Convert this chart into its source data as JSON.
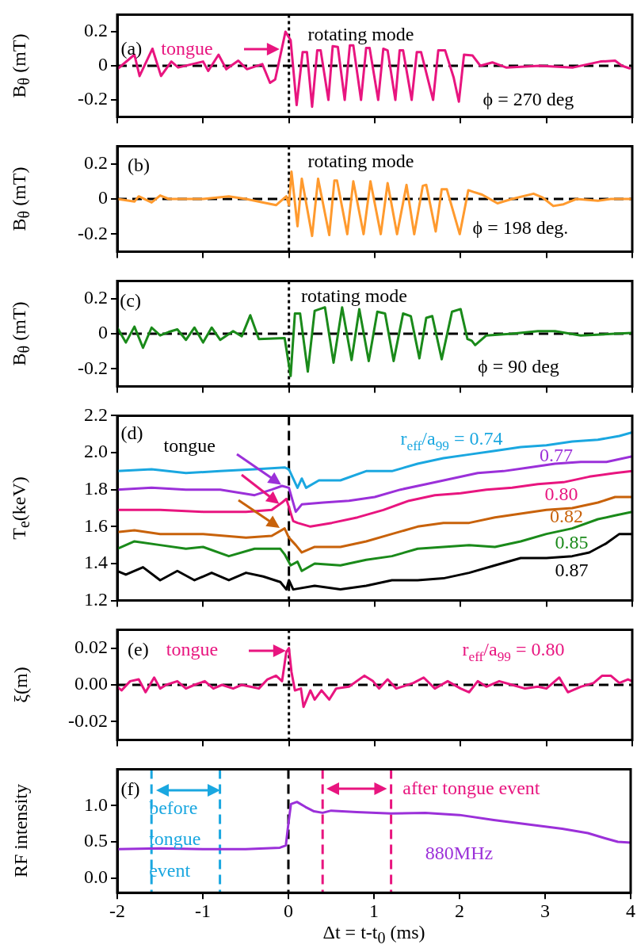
{
  "chart_data": [
    {
      "type": "line",
      "ylabel": "B$_{θ}$ (mT)",
      "xlim": [
        -2,
        4
      ],
      "xticks": [
        -2,
        -1,
        0,
        1,
        2,
        3,
        4
      ],
      "ylim": [
        -0.3,
        0.3
      ],
      "yticks": [
        -0.2,
        0,
        0.2
      ],
      "tick_labels": "y",
      "annotations": [
        "(a)",
        "tongue",
        "rotating mode",
        "ϕ = 270 deg"
      ],
      "ref_lines": [
        {
          "axis": "y",
          "value": 0,
          "line_style": "dashed"
        },
        {
          "axis": "x",
          "value": 0,
          "line_style": "dotted"
        }
      ],
      "series": [
        {
          "color": "#e8157f",
          "x": [
            -2,
            -1.8,
            -1.74,
            -1.59,
            -1.49,
            -1.37,
            -1.29,
            -1.0,
            -0.94,
            -0.82,
            -0.73,
            -0.59,
            -0.49,
            -0.31,
            -0.22,
            -0.16,
            -0.04,
            0.02,
            0.09,
            0.16,
            0.21,
            0.27,
            0.33,
            0.37,
            0.46,
            0.51,
            0.57,
            0.65,
            0.71,
            0.75,
            0.84,
            0.9,
            0.94,
            1.04,
            1.1,
            1.15,
            1.24,
            1.29,
            1.33,
            1.43,
            1.49,
            1.54,
            1.68,
            1.74,
            1.82,
            1.92,
            1.98,
            2.04,
            2.14,
            2.23,
            2.37,
            2.53,
            2.92,
            3.31,
            3.63,
            3.8,
            3.88,
            3.97
          ],
          "values": [
            -0.02,
            0.065,
            -0.06,
            0.1,
            -0.06,
            0.025,
            -0.01,
            0.025,
            -0.03,
            0.065,
            -0.02,
            0.03,
            -0.02,
            0.01,
            -0.1,
            -0.08,
            0.2,
            0.15,
            -0.23,
            0.08,
            0.08,
            -0.24,
            0.09,
            0.09,
            -0.2,
            0.115,
            0.11,
            -0.2,
            0.12,
            0.12,
            -0.2,
            0.105,
            0.105,
            -0.2,
            0.1,
            0.09,
            -0.2,
            0.09,
            0.09,
            -0.2,
            0.08,
            0.08,
            -0.2,
            0.09,
            0.09,
            -0.07,
            -0.21,
            0.065,
            0.06,
            0.0,
            0.02,
            -0.01,
            0.0,
            -0.01,
            0.025,
            0.03,
            0.0,
            -0.015
          ]
        }
      ]
    },
    {
      "type": "line",
      "ylabel": "B$_{θ}$ (mT)",
      "xlim": [
        -2,
        4
      ],
      "xticks": [
        -2,
        -1,
        0,
        1,
        2,
        3,
        4
      ],
      "ylim": [
        -0.3,
        0.3
      ],
      "yticks": [
        -0.2,
        0,
        0.2
      ],
      "tick_labels": "y",
      "annotations": [
        "(b)",
        "rotating mode",
        "ϕ = 198 deg."
      ],
      "ref_lines": [
        {
          "axis": "y",
          "value": 0,
          "line_style": "dashed"
        },
        {
          "axis": "x",
          "value": 0,
          "line_style": "dotted"
        }
      ],
      "series": [
        {
          "color": "#ff9a2e",
          "x": [
            -2,
            -1.8,
            -1.75,
            -1.6,
            -1.5,
            -1.4,
            -1.0,
            -0.7,
            -0.5,
            -0.3,
            -0.15,
            -0.03,
            0.0,
            0.03,
            0.1,
            0.15,
            0.27,
            0.34,
            0.47,
            0.53,
            0.56,
            0.68,
            0.75,
            0.87,
            0.95,
            1.07,
            1.15,
            1.26,
            1.37,
            1.46,
            1.56,
            1.6,
            1.71,
            1.78,
            1.84,
            1.99,
            2.09,
            2.15,
            2.25,
            2.43,
            2.6,
            2.85,
            2.95,
            3.08,
            3.2,
            3.35,
            3.6,
            3.75,
            4.0
          ],
          "values": [
            0.0,
            -0.015,
            0.015,
            -0.02,
            0.02,
            0.0,
            0.0,
            0.015,
            0.0,
            -0.02,
            -0.035,
            0.015,
            -0.035,
            0.155,
            -0.155,
            0.115,
            -0.21,
            0.115,
            -0.205,
            0.105,
            0.105,
            -0.2,
            0.1,
            -0.2,
            0.1,
            -0.2,
            0.09,
            -0.2,
            0.08,
            -0.2,
            0.075,
            0.08,
            -0.185,
            0.055,
            0.055,
            -0.2,
            0.05,
            0.04,
            0.025,
            -0.025,
            0.0,
            0.03,
            0.01,
            -0.04,
            -0.03,
            0.0,
            -0.01,
            0.0,
            0.0
          ]
        }
      ]
    },
    {
      "type": "line",
      "ylabel": "B$_{θ}$ (mT)",
      "xlim": [
        -2,
        4
      ],
      "xticks": [
        -2,
        -1,
        0,
        1,
        2,
        3,
        4
      ],
      "ylim": [
        -0.3,
        0.3
      ],
      "yticks": [
        -0.2,
        0,
        0.2
      ],
      "tick_labels": "y",
      "annotations": [
        "(c)",
        "rotating mode",
        "ϕ = 90 deg"
      ],
      "ref_lines": [
        {
          "axis": "y",
          "value": 0,
          "line_style": "dashed"
        },
        {
          "axis": "x",
          "value": 0,
          "line_style": "dotted"
        }
      ],
      "series": [
        {
          "color": "#1a8a1a",
          "x": [
            -2,
            -1.9,
            -1.8,
            -1.7,
            -1.6,
            -1.5,
            -1.4,
            -1.3,
            -1.2,
            -1.1,
            -1.0,
            -0.9,
            -0.8,
            -0.65,
            -0.55,
            -0.45,
            -0.35,
            -0.05,
            0.02,
            0.07,
            0.13,
            0.22,
            0.3,
            0.42,
            0.52,
            0.62,
            0.73,
            0.82,
            0.93,
            1.03,
            1.12,
            1.22,
            1.33,
            1.42,
            1.52,
            1.6,
            1.67,
            1.78,
            1.9,
            2.0,
            2.08,
            2.13,
            2.17,
            2.3,
            2.6,
            2.9,
            3.1,
            3.4,
            3.8,
            4.0
          ],
          "values": [
            0.035,
            -0.05,
            0.04,
            -0.08,
            0.035,
            -0.01,
            0.01,
            0.025,
            -0.035,
            0.035,
            -0.05,
            0.035,
            -0.035,
            0.015,
            -0.015,
            0.105,
            -0.03,
            -0.025,
            -0.24,
            0.115,
            0.115,
            -0.215,
            0.13,
            0.15,
            -0.165,
            0.15,
            -0.15,
            0.14,
            -0.155,
            0.125,
            0.115,
            -0.155,
            0.115,
            0.1,
            -0.14,
            0.09,
            0.1,
            -0.145,
            0.125,
            0.14,
            -0.03,
            -0.04,
            -0.065,
            -0.01,
            0.0,
            0.015,
            0.015,
            -0.01,
            0.0,
            0.005
          ]
        }
      ]
    },
    {
      "type": "line",
      "ylabel": "T$_{e}$(keV)",
      "xlim": [
        -2,
        4
      ],
      "xticks": [
        -2,
        -1,
        0,
        1,
        2,
        3,
        4
      ],
      "ylim": [
        1.2,
        2.2
      ],
      "yticks": [
        1.2,
        1.4,
        1.6,
        1.8,
        {
          "value": 2,
          "label": "2.0"
        },
        2.2
      ],
      "tick_labels": "y",
      "annotations": [
        "(d)",
        "tongue"
      ],
      "ref_lines": [
        {
          "axis": "x",
          "value": 0,
          "line_style": "dashed"
        }
      ],
      "series": [
        {
          "name": "r$_{eff}$/a$_{99}$ = 0.74",
          "color": "#1aa7e0",
          "x": [
            -2,
            -1.6,
            -1.2,
            -0.8,
            -0.4,
            -0.05,
            0.0,
            0.1,
            0.15,
            0.2,
            0.35,
            0.6,
            0.9,
            1.2,
            1.5,
            1.8,
            2.1,
            2.4,
            2.7,
            3.0,
            3.3,
            3.6,
            3.85,
            4.0
          ],
          "values": [
            1.9,
            1.91,
            1.89,
            1.9,
            1.91,
            1.92,
            1.91,
            1.81,
            1.86,
            1.81,
            1.85,
            1.85,
            1.9,
            1.9,
            1.94,
            1.97,
            1.99,
            2.01,
            2.03,
            2.04,
            2.06,
            2.07,
            2.09,
            2.11
          ]
        },
        {
          "name": "0.77",
          "color": "#9b30d9",
          "x": [
            -2,
            -1.6,
            -1.2,
            -0.8,
            -0.4,
            -0.2,
            -0.08,
            0.0,
            0.08,
            0.15,
            0.4,
            0.7,
            1.0,
            1.3,
            1.6,
            1.9,
            2.2,
            2.5,
            2.8,
            3.1,
            3.4,
            3.7,
            4.0
          ],
          "values": [
            1.8,
            1.81,
            1.8,
            1.8,
            1.77,
            1.8,
            1.82,
            1.81,
            1.68,
            1.72,
            1.73,
            1.74,
            1.76,
            1.8,
            1.83,
            1.86,
            1.89,
            1.9,
            1.92,
            1.94,
            1.95,
            1.95,
            1.98
          ]
        },
        {
          "name": "0.80",
          "color": "#e8157f",
          "x": [
            -2,
            -1.5,
            -1.0,
            -0.5,
            -0.2,
            -0.08,
            -0.03,
            0.05,
            0.1,
            0.25,
            0.5,
            0.8,
            1.1,
            1.4,
            1.7,
            2.0,
            2.3,
            2.6,
            2.9,
            3.2,
            3.5,
            3.8,
            4.0
          ],
          "values": [
            1.69,
            1.69,
            1.68,
            1.68,
            1.69,
            1.73,
            1.75,
            1.63,
            1.62,
            1.6,
            1.62,
            1.65,
            1.69,
            1.74,
            1.77,
            1.78,
            1.8,
            1.81,
            1.83,
            1.84,
            1.87,
            1.89,
            1.9
          ]
        },
        {
          "name": "0.82",
          "color": "#c8620a",
          "x": [
            -2,
            -1.8,
            -1.5,
            -1.0,
            -0.5,
            -0.2,
            -0.05,
            0.0,
            0.08,
            0.15,
            0.3,
            0.6,
            0.9,
            1.2,
            1.5,
            1.8,
            2.1,
            2.4,
            2.7,
            3.0,
            3.3,
            3.6,
            3.8,
            4.0
          ],
          "values": [
            1.57,
            1.58,
            1.56,
            1.56,
            1.54,
            1.55,
            1.59,
            1.54,
            1.5,
            1.46,
            1.49,
            1.49,
            1.52,
            1.56,
            1.6,
            1.62,
            1.62,
            1.65,
            1.67,
            1.69,
            1.7,
            1.73,
            1.76,
            1.76
          ]
        },
        {
          "name": "0.85",
          "color": "#1a8a1a",
          "x": [
            -2,
            -1.8,
            -1.5,
            -1.2,
            -1.0,
            -0.7,
            -0.4,
            -0.1,
            -0.05,
            0.02,
            0.1,
            0.15,
            0.3,
            0.6,
            0.9,
            1.2,
            1.5,
            1.8,
            2.1,
            2.4,
            2.7,
            3.0,
            3.3,
            3.6,
            3.8,
            4.0
          ],
          "values": [
            1.48,
            1.52,
            1.5,
            1.48,
            1.49,
            1.44,
            1.48,
            1.48,
            1.45,
            1.39,
            1.41,
            1.36,
            1.4,
            1.39,
            1.42,
            1.44,
            1.48,
            1.49,
            1.5,
            1.49,
            1.52,
            1.56,
            1.59,
            1.64,
            1.66,
            1.68
          ]
        },
        {
          "name": "0.87",
          "color": "#000000",
          "x": [
            -2,
            -1.9,
            -1.7,
            -1.5,
            -1.3,
            -1.1,
            -0.9,
            -0.7,
            -0.5,
            -0.3,
            -0.1,
            -0.03,
            0.0,
            0.05,
            0.3,
            0.6,
            0.9,
            1.2,
            1.5,
            1.8,
            2.1,
            2.4,
            2.7,
            3.0,
            3.3,
            3.5,
            3.7,
            3.85,
            4.0
          ],
          "values": [
            1.36,
            1.34,
            1.38,
            1.31,
            1.36,
            1.31,
            1.35,
            1.31,
            1.35,
            1.33,
            1.3,
            1.26,
            1.31,
            1.26,
            1.28,
            1.26,
            1.28,
            1.31,
            1.31,
            1.32,
            1.35,
            1.39,
            1.43,
            1.43,
            1.44,
            1.46,
            1.51,
            1.56,
            1.56
          ]
        }
      ]
    },
    {
      "type": "line",
      "ylabel": "ξ(m)",
      "xlim": [
        -2,
        4
      ],
      "xticks": [
        -2,
        -1,
        0,
        1,
        2,
        3,
        4
      ],
      "ylim": [
        -0.03,
        0.03
      ],
      "yticks": [
        -0.02,
        {
          "value": 0,
          "label": "0.00"
        },
        0.02
      ],
      "tick_labels": "y",
      "annotations": [
        "(e)",
        "tongue"
      ],
      "ref_lines": [
        {
          "axis": "y",
          "value": 0,
          "line_style": "dashed"
        },
        {
          "axis": "x",
          "value": 0,
          "line_style": "dotted"
        }
      ],
      "series": [
        {
          "name": "r$_{eff}$/a$_{99}$ = 0.80",
          "color": "#e8157f",
          "x": [
            -2,
            -1.95,
            -1.85,
            -1.75,
            -1.67,
            -1.57,
            -1.5,
            -1.43,
            -1.3,
            -1.2,
            -1.1,
            -0.98,
            -0.88,
            -0.78,
            -0.65,
            -0.55,
            -0.45,
            -0.35,
            -0.25,
            -0.15,
            -0.08,
            -0.03,
            0.0,
            0.03,
            0.07,
            0.14,
            0.17,
            0.25,
            0.3,
            0.38,
            0.47,
            0.55,
            0.7,
            0.88,
            0.98,
            1.05,
            1.15,
            1.25,
            1.45,
            1.57,
            1.7,
            1.85,
            2.0,
            2.1,
            2.2,
            2.3,
            2.45,
            2.6,
            2.75,
            2.9,
            3.0,
            3.15,
            3.25,
            3.4,
            3.55,
            3.65,
            3.75,
            3.85,
            3.95,
            4.0
          ],
          "values": [
            -0.001,
            -0.003,
            0.002,
            0.003,
            -0.004,
            0.004,
            -0.002,
            0.0,
            0.002,
            -0.002,
            0.0,
            0.002,
            -0.002,
            0.0,
            -0.002,
            0.0,
            -0.001,
            -0.002,
            0.003,
            0.005,
            0.002,
            0.018,
            0.02,
            0.007,
            -0.003,
            -0.002,
            -0.012,
            -0.003,
            -0.008,
            -0.003,
            -0.008,
            -0.002,
            -0.001,
            0.005,
            0.002,
            -0.002,
            0.003,
            -0.002,
            0.001,
            0.004,
            -0.002,
            0.002,
            -0.002,
            -0.004,
            0.002,
            -0.001,
            0.002,
            0.0,
            -0.002,
            -0.001,
            -0.002,
            0.004,
            -0.004,
            -0.001,
            0.001,
            0.005,
            0.005,
            0.001,
            0.003,
            0.002
          ]
        }
      ]
    },
    {
      "type": "line",
      "ylabel": "RF intensity",
      "xlabel": "Δt = t-t$_{0}$ (ms)",
      "xlim": [
        -2,
        4
      ],
      "xticks": [
        -2,
        -1,
        0,
        1,
        2,
        3,
        4
      ],
      "ylim": [
        -0.2,
        1.5
      ],
      "yticks": [
        {
          "value": 0,
          "label": "0.0"
        },
        0.5,
        {
          "value": 1,
          "label": "1.0"
        }
      ],
      "annotations": [
        "(f)",
        "before tongue event",
        "after tongue event"
      ],
      "ref_lines": [
        {
          "axis": "x",
          "value": -1.6,
          "color": "#1aa7e0",
          "line_style": "dashed"
        },
        {
          "axis": "x",
          "value": -0.8,
          "color": "#1aa7e0",
          "line_style": "dashed"
        },
        {
          "axis": "x",
          "value": 0,
          "line_style": "dashed"
        },
        {
          "axis": "x",
          "value": 0.4,
          "color": "#e8157f",
          "line_style": "dashed"
        },
        {
          "axis": "x",
          "value": 1.2,
          "color": "#e8157f",
          "line_style": "dashed"
        }
      ],
      "series": [
        {
          "name": "880MHz",
          "color": "#9b30d9",
          "x": [
            -2,
            -1.5,
            -1.0,
            -0.5,
            -0.1,
            -0.03,
            0.0,
            0.03,
            0.1,
            0.2,
            0.3,
            0.4,
            0.5,
            0.8,
            1.2,
            1.6,
            2.0,
            2.4,
            2.8,
            3.2,
            3.5,
            3.7,
            3.85,
            4.0
          ],
          "values": [
            0.4,
            0.41,
            0.4,
            0.4,
            0.42,
            0.45,
            0.75,
            1.02,
            1.05,
            0.98,
            0.92,
            0.9,
            0.93,
            0.91,
            0.89,
            0.9,
            0.87,
            0.8,
            0.74,
            0.68,
            0.62,
            0.55,
            0.5,
            0.49
          ]
        }
      ]
    }
  ]
}
